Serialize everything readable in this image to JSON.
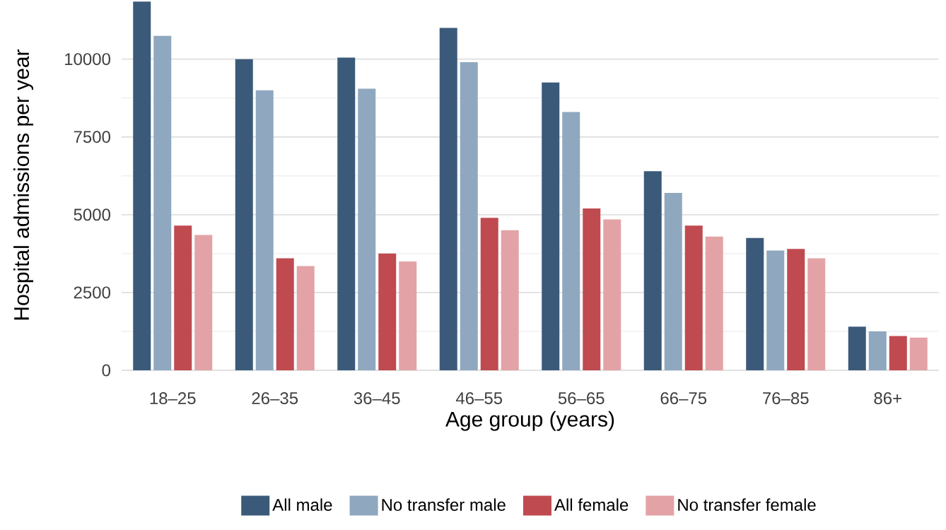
{
  "chart_data": {
    "type": "bar",
    "xlabel": "Age group (years)",
    "ylabel": "Hospital admissions per year",
    "categories": [
      "18–25",
      "26–35",
      "36–45",
      "46–55",
      "56–65",
      "66–75",
      "76–85",
      "86+"
    ],
    "series": [
      {
        "name": "All male",
        "color": "#3b5a7a",
        "values": [
          11850,
          10000,
          10050,
          11000,
          9250,
          6400,
          4250,
          1400
        ]
      },
      {
        "name": "No transfer male",
        "color": "#8fa8c0",
        "values": [
          10750,
          9000,
          9050,
          9900,
          8300,
          5700,
          3850,
          1250
        ]
      },
      {
        "name": "All female",
        "color": "#bf4a50",
        "values": [
          4650,
          3600,
          3750,
          4900,
          5200,
          4650,
          3900,
          1100
        ]
      },
      {
        "name": "No transfer female",
        "color": "#e3a3a6",
        "values": [
          4350,
          3350,
          3500,
          4500,
          4850,
          4300,
          3600,
          1050
        ]
      }
    ],
    "ylim": [
      0,
      11900
    ],
    "yticks": [
      0,
      2500,
      5000,
      7500,
      10000
    ],
    "grid": "y",
    "legend": "bottom"
  }
}
